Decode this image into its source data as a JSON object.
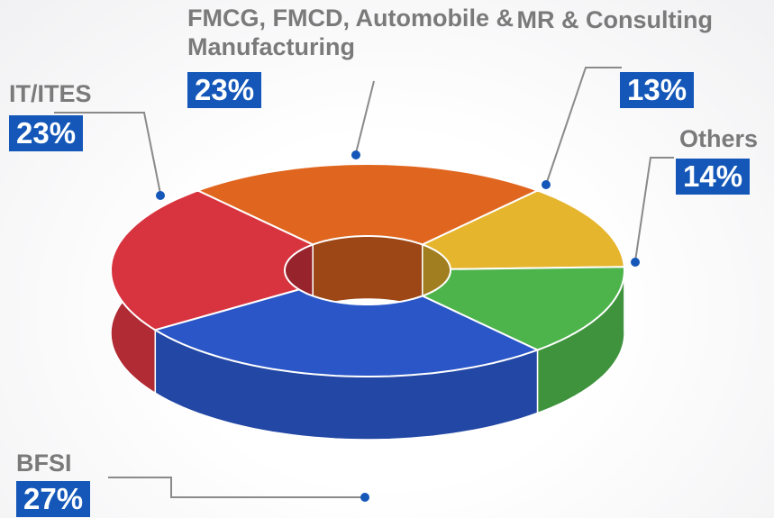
{
  "chart_data": {
    "type": "pie",
    "donut": true,
    "categories": [
      "IT/ITES",
      "FMCG, FMCD, Automobile & Manufacturing",
      "MR & Consulting",
      "Others",
      "BFSI"
    ],
    "values": [
      23,
      23,
      13,
      14,
      27
    ],
    "value_labels": [
      "23%",
      "23%",
      "13%",
      "14%",
      "27%"
    ],
    "colors": [
      "#d8343f",
      "#e0661f",
      "#e6b52e",
      "#4db34b",
      "#2a56c8"
    ]
  }
}
